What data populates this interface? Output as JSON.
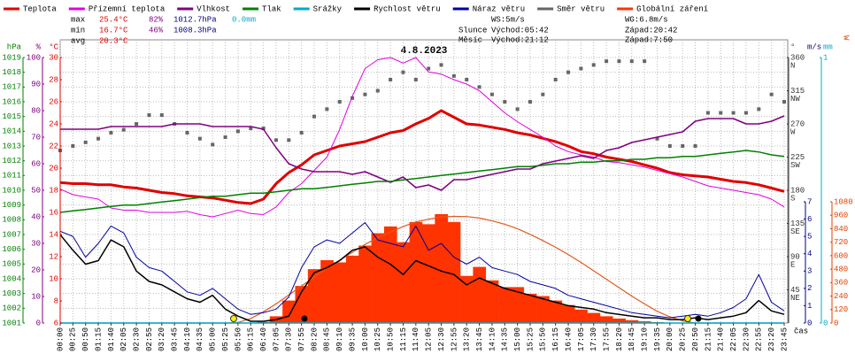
{
  "chart_data": {
    "type": "line",
    "title": "4.8.2023",
    "x_label": "čas",
    "categories": [
      "00:00",
      "00:25",
      "00:50",
      "01:15",
      "01:40",
      "02:05",
      "02:30",
      "02:55",
      "03:20",
      "03:45",
      "04:10",
      "04:35",
      "05:00",
      "05:25",
      "05:50",
      "06:15",
      "06:40",
      "07:05",
      "07:30",
      "07:55",
      "08:20",
      "08:45",
      "09:10",
      "09:35",
      "10:00",
      "10:25",
      "10:50",
      "11:15",
      "11:40",
      "12:05",
      "12:30",
      "12:55",
      "13:20",
      "13:45",
      "14:10",
      "14:35",
      "15:00",
      "15:25",
      "15:50",
      "16:15",
      "16:40",
      "17:05",
      "17:30",
      "17:55",
      "18:20",
      "18:45",
      "19:10",
      "19:35",
      "20:00",
      "20:25",
      "20:50",
      "21:15",
      "21:40",
      "22:05",
      "22:30",
      "22:55",
      "23:20",
      "23:45"
    ],
    "grid": true,
    "axes": {
      "pressure": {
        "label": "hPa",
        "color": "#008000",
        "ylim": [
          1001,
          1019
        ],
        "yticks": [
          1001,
          1002,
          1003,
          1004,
          1005,
          1006,
          1007,
          1008,
          1009,
          1010,
          1011,
          1012,
          1013,
          1014,
          1015,
          1016,
          1017,
          1018,
          1019
        ]
      },
      "humidity": {
        "label": "%",
        "color": "#800080",
        "ylim": [
          0,
          100
        ],
        "yticks": [
          0,
          10,
          20,
          30,
          40,
          50,
          60,
          70,
          80,
          90,
          100
        ]
      },
      "temperature": {
        "label": "°C",
        "color": "#e00000",
        "ylim": [
          6,
          30
        ],
        "yticks": [
          6,
          8,
          10,
          12,
          14,
          16,
          18,
          20,
          22,
          24,
          26,
          28,
          30
        ]
      },
      "direction": {
        "label": "°",
        "color": "#333333",
        "ylim": [
          0,
          360
        ],
        "yticks": [
          45,
          90,
          135,
          180,
          225,
          270,
          315,
          360
        ],
        "compass": [
          "NE",
          "E",
          "SE",
          "S",
          "SW",
          "W",
          "NW",
          "N"
        ]
      },
      "wind": {
        "label": "m/s",
        "color": "#000080",
        "ylim": [
          0,
          7
        ],
        "yticks": [
          0,
          1,
          2,
          3,
          4,
          5,
          6,
          7
        ]
      },
      "rain": {
        "label": "mm",
        "color": "#00aacc",
        "ylim": [
          0,
          1
        ],
        "yticks": [
          0,
          1
        ]
      },
      "radiation": {
        "label": "W",
        "color": "#e04000",
        "ylim": [
          0,
          1080
        ],
        "yticks": [
          0,
          120,
          240,
          360,
          480,
          600,
          720,
          840,
          960,
          1080
        ]
      }
    },
    "series": [
      {
        "name": "Teplota",
        "color": "#e00000",
        "axis": "temperature",
        "style": "line",
        "width": 3,
        "values": [
          18.7,
          18.6,
          18.6,
          18.5,
          18.5,
          18.3,
          18.2,
          18.0,
          17.8,
          17.7,
          17.5,
          17.4,
          17.3,
          17.1,
          16.9,
          16.8,
          17.2,
          18.6,
          19.6,
          20.3,
          21.2,
          21.6,
          22.0,
          22.2,
          22.4,
          22.8,
          23.2,
          23.4,
          24.0,
          24.5,
          25.2,
          24.6,
          24.0,
          23.9,
          23.7,
          23.5,
          23.2,
          23.0,
          22.7,
          22.4,
          22.0,
          21.5,
          21.3,
          21.0,
          20.8,
          20.6,
          20.3,
          20.0,
          19.6,
          19.4,
          19.3,
          19.2,
          19.0,
          18.8,
          18.7,
          18.5,
          18.2,
          17.9
        ]
      },
      {
        "name": "Přízemní teplota",
        "color": "#e000e0",
        "axis": "temperature",
        "style": "line",
        "width": 1,
        "values": [
          18.1,
          17.6,
          17.4,
          17.2,
          16.4,
          16.2,
          16.2,
          16.0,
          16.0,
          16.0,
          16.1,
          15.8,
          15.6,
          15.9,
          16.2,
          15.9,
          15.8,
          16.5,
          17.8,
          18.6,
          19.8,
          21.0,
          23.5,
          26.5,
          29.0,
          29.8,
          30.0,
          29.5,
          30.0,
          28.7,
          28.5,
          28.0,
          27.6,
          27.0,
          26.0,
          25.0,
          24.2,
          23.5,
          22.8,
          22.0,
          21.5,
          21.2,
          21.0,
          20.6,
          20.5,
          20.3,
          20.1,
          19.8,
          19.5,
          19.2,
          18.8,
          18.4,
          18.2,
          18.0,
          17.8,
          17.6,
          17.2,
          16.5
        ]
      },
      {
        "name": "Vlhkost",
        "color": "#800080",
        "axis": "humidity",
        "style": "line",
        "width": 1.5,
        "values": [
          73,
          73,
          73,
          73,
          74,
          74,
          74,
          74,
          74,
          75,
          75,
          75,
          74,
          74,
          74,
          74,
          73,
          66,
          60,
          58,
          57,
          57,
          57,
          56,
          57,
          55,
          53,
          55,
          51,
          52,
          50,
          54,
          54,
          55,
          56,
          57,
          58,
          58,
          60,
          61,
          62,
          63,
          62,
          65,
          66,
          68,
          69,
          70,
          71,
          72,
          76,
          77,
          77,
          77,
          75,
          75,
          76,
          78
        ]
      },
      {
        "name": "Tlak",
        "color": "#008000",
        "axis": "pressure",
        "style": "line",
        "width": 1.5,
        "values": [
          1008.5,
          1008.6,
          1008.7,
          1008.8,
          1008.9,
          1009.0,
          1009.0,
          1009.1,
          1009.2,
          1009.3,
          1009.4,
          1009.5,
          1009.6,
          1009.6,
          1009.7,
          1009.8,
          1009.8,
          1009.9,
          1010.0,
          1010.1,
          1010.1,
          1010.2,
          1010.3,
          1010.4,
          1010.5,
          1010.6,
          1010.6,
          1010.7,
          1010.8,
          1010.9,
          1011.0,
          1011.1,
          1011.2,
          1011.3,
          1011.4,
          1011.5,
          1011.6,
          1011.6,
          1011.7,
          1011.8,
          1011.8,
          1011.9,
          1011.9,
          1012.0,
          1012.0,
          1012.1,
          1012.1,
          1012.2,
          1012.2,
          1012.3,
          1012.3,
          1012.4,
          1012.5,
          1012.6,
          1012.7,
          1012.6,
          1012.4,
          1012.3
        ]
      },
      {
        "name": "Srážky",
        "color": "#00aacc",
        "axis": "rain",
        "style": "line",
        "width": 1.5,
        "values": [
          0,
          0,
          0,
          0,
          0,
          0,
          0,
          0,
          0,
          0,
          0,
          0,
          0,
          0,
          0,
          0,
          0,
          0,
          0,
          0,
          0,
          0,
          0,
          0,
          0,
          0,
          0,
          0,
          0,
          0,
          0,
          0,
          0,
          0,
          0,
          0,
          0,
          0,
          0,
          0,
          0,
          0,
          0,
          0,
          0,
          0,
          0,
          0,
          0,
          0,
          0,
          0,
          0,
          0,
          0,
          0,
          0,
          0
        ]
      },
      {
        "name": "Rychlost větru",
        "color": "#000000",
        "axis": "wind",
        "style": "line",
        "width": 1.5,
        "values": [
          5.1,
          4.2,
          3.4,
          3.6,
          4.8,
          4.4,
          3.0,
          2.4,
          2.2,
          1.8,
          1.4,
          1.2,
          1.6,
          0.8,
          0.4,
          0.1,
          0.1,
          0.2,
          0.4,
          1.8,
          2.9,
          3.2,
          3.6,
          4.2,
          4.4,
          3.8,
          3.4,
          2.8,
          3.6,
          3.3,
          3.0,
          2.8,
          2.2,
          2.6,
          2.3,
          2.0,
          1.8,
          1.6,
          1.4,
          1.2,
          1.0,
          0.9,
          0.8,
          0.6,
          0.5,
          0.4,
          0.3,
          0.3,
          0.2,
          0.2,
          0.3,
          0.2,
          0.3,
          0.4,
          0.6,
          1.3,
          0.7,
          0.5
        ]
      },
      {
        "name": "Náraz větru",
        "color": "#0000a0",
        "axis": "wind",
        "style": "line",
        "width": 1,
        "values": [
          5.3,
          5.0,
          3.8,
          4.6,
          5.6,
          5.2,
          3.8,
          3.2,
          3.0,
          2.4,
          1.8,
          1.6,
          2.0,
          1.4,
          0.8,
          0.5,
          0.6,
          0.8,
          1.5,
          3.2,
          4.4,
          4.8,
          4.6,
          5.2,
          5.8,
          4.8,
          4.6,
          4.4,
          5.6,
          4.2,
          4.6,
          3.8,
          3.4,
          3.8,
          3.2,
          3.0,
          2.8,
          2.4,
          2.2,
          2.0,
          1.6,
          1.4,
          1.2,
          1.0,
          0.8,
          0.6,
          0.5,
          0.4,
          0.3,
          0.4,
          0.5,
          0.4,
          0.6,
          0.9,
          1.4,
          2.8,
          1.2,
          0.7
        ]
      },
      {
        "name": "Směr větru",
        "color": "#666666",
        "axis": "direction",
        "style": "points",
        "values": [
          234,
          240,
          245,
          250,
          258,
          262,
          270,
          282,
          282,
          270,
          258,
          250,
          242,
          252,
          260,
          264,
          264,
          248,
          248,
          258,
          280,
          290,
          300,
          305,
          310,
          315,
          330,
          340,
          330,
          345,
          350,
          335,
          330,
          320,
          310,
          300,
          290,
          300,
          310,
          330,
          340,
          345,
          350,
          355,
          355,
          355,
          355,
          250,
          240,
          240,
          240,
          285,
          285,
          285,
          285,
          290,
          310,
          300
        ]
      },
      {
        "name": "Globální záření",
        "color": "#ff3300",
        "line_color": "#e05a20",
        "axis": "radiation",
        "style": "area",
        "values": [
          0,
          0,
          0,
          0,
          0,
          0,
          0,
          0,
          0,
          0,
          0,
          0,
          0,
          0,
          0,
          0,
          10,
          60,
          200,
          330,
          480,
          560,
          540,
          600,
          690,
          800,
          860,
          720,
          900,
          880,
          970,
          900,
          420,
          500,
          380,
          320,
          320,
          260,
          240,
          200,
          160,
          120,
          90,
          60,
          40,
          25,
          15,
          8,
          3,
          0,
          0,
          0,
          0,
          0,
          0,
          0,
          0,
          0
        ],
        "theoretical_values": [
          0,
          0,
          0,
          0,
          0,
          0,
          0,
          0,
          0,
          0,
          0,
          0,
          0,
          0,
          5,
          40,
          100,
          170,
          250,
          330,
          410,
          490,
          560,
          630,
          700,
          760,
          810,
          860,
          900,
          925,
          945,
          950,
          948,
          935,
          910,
          880,
          840,
          790,
          735,
          675,
          610,
          540,
          465,
          390,
          315,
          240,
          170,
          105,
          55,
          20,
          0,
          0,
          0,
          0,
          0,
          0,
          0,
          0
        ]
      }
    ],
    "stats": {
      "max": [
        "max",
        "25.4°C",
        "82%",
        "1012.7hPa",
        "0.0mm"
      ],
      "min": [
        "min",
        "16.7°C",
        "46%",
        "1008.3hPa"
      ],
      "avg": [
        "avg",
        "20.3°C"
      ]
    },
    "info": {
      "ws": "WS:5m/s",
      "wg": "WG:6.8m/s",
      "sun": [
        "Slunce",
        "Východ:05:42",
        "Západ:20:42"
      ],
      "moon": [
        "Měsíc",
        "Východ:21:12",
        "Západ:7:50"
      ]
    }
  }
}
